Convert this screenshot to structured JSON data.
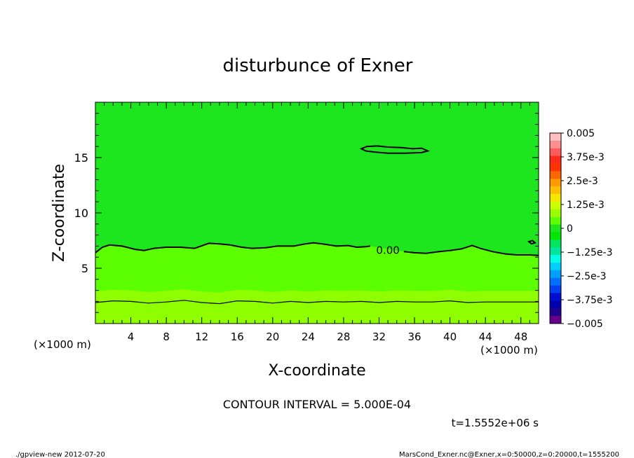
{
  "chart_data": {
    "type": "contour",
    "title": "disturbunce of Exner",
    "xlabel": "X-coordinate",
    "ylabel": "Z-coordinate",
    "x_unit_left": "(×1000 m)",
    "x_unit_right": "(×1000 m)",
    "xlim": [
      0,
      50
    ],
    "ylim": [
      0,
      20
    ],
    "x_ticks": [
      4,
      8,
      12,
      16,
      20,
      24,
      28,
      32,
      36,
      40,
      44,
      48
    ],
    "y_ticks": [
      5,
      10,
      15
    ],
    "contour_label": "0.00",
    "contour_interval_text": "CONTOUR INTERVAL = 5.000E-04",
    "time_text": "t=1.5552e+06 s",
    "colorbar": {
      "labels": [
        "0.005",
        "3.75e-3",
        "2.5e-3",
        "1.25e-3",
        "0",
        "−1.25e-3",
        "−2.5e-3",
        "−3.75e-3",
        "−0.005"
      ],
      "values": [
        0.005,
        0.00375,
        0.0025,
        0.00125,
        0,
        -0.00125,
        -0.0025,
        -0.00375,
        -0.005
      ],
      "colors": [
        "#ffc0c0",
        "#ff8f8f",
        "#ff5a5a",
        "#ff2a1a",
        "#ff3300",
        "#ff6600",
        "#ff9900",
        "#ffbf00",
        "#f5e600",
        "#ccff00",
        "#99ff00",
        "#5cff00",
        "#1ee61e",
        "#00e600",
        "#00e660",
        "#00e6a0",
        "#00ffe6",
        "#00cfff",
        "#00a0ff",
        "#0070ff",
        "#0040f0",
        "#0010d0",
        "#0000b0",
        "#200090",
        "#6a0090"
      ]
    },
    "fill_colors": {
      "upper": "#1ee61e",
      "lower": "#5cff00",
      "bottom_band": "#8fff00"
    },
    "contours": [
      {
        "level": 0.0,
        "points": [
          [
            0,
            6.4
          ],
          [
            0.8,
            6.9
          ],
          [
            1.6,
            7.1
          ],
          [
            3,
            7.0
          ],
          [
            4.5,
            6.7
          ],
          [
            5.5,
            6.6
          ],
          [
            6.6,
            6.8
          ],
          [
            8,
            6.9
          ],
          [
            9.6,
            6.9
          ],
          [
            11.2,
            6.8
          ],
          [
            12.8,
            7.25
          ],
          [
            14,
            7.2
          ],
          [
            15.2,
            7.1
          ],
          [
            16.5,
            6.9
          ],
          [
            17.7,
            6.8
          ],
          [
            19.2,
            6.85
          ],
          [
            20.5,
            7.0
          ],
          [
            22.4,
            7.0
          ],
          [
            23.7,
            7.2
          ],
          [
            24.6,
            7.3
          ],
          [
            25.6,
            7.2
          ],
          [
            27.2,
            7.0
          ],
          [
            28.5,
            7.05
          ],
          [
            29.5,
            6.9
          ],
          [
            30.5,
            6.95
          ],
          [
            31,
            7.0
          ]
        ],
        "label_at": [
          33,
          6.6
        ]
      },
      {
        "level": 0.0,
        "points": [
          [
            34.8,
            6.5
          ],
          [
            36,
            6.4
          ],
          [
            37.3,
            6.35
          ],
          [
            38.8,
            6.5
          ],
          [
            40,
            6.6
          ],
          [
            41.3,
            6.75
          ],
          [
            42.5,
            7.05
          ],
          [
            43.4,
            6.8
          ],
          [
            44.8,
            6.5
          ],
          [
            46.2,
            6.3
          ],
          [
            47.5,
            6.2
          ],
          [
            49,
            6.2
          ],
          [
            50,
            6.15
          ]
        ]
      },
      {
        "level": 0.0,
        "closed": true,
        "points": [
          [
            30,
            15.8
          ],
          [
            30.6,
            16.0
          ],
          [
            31.8,
            16.05
          ],
          [
            33,
            15.95
          ],
          [
            34.5,
            15.9
          ],
          [
            35.8,
            15.8
          ],
          [
            36.8,
            15.85
          ],
          [
            37.5,
            15.6
          ],
          [
            36.8,
            15.45
          ],
          [
            35,
            15.4
          ],
          [
            33,
            15.4
          ],
          [
            31.5,
            15.5
          ],
          [
            30.5,
            15.6
          ]
        ]
      },
      {
        "level": 0.0,
        "closed": true,
        "points": [
          [
            48.9,
            7.4
          ],
          [
            49.3,
            7.5
          ],
          [
            49.6,
            7.3
          ],
          [
            49.2,
            7.2
          ]
        ]
      },
      {
        "level": -0.0005,
        "points": [
          [
            0,
            1.9
          ],
          [
            2,
            2.05
          ],
          [
            4,
            2.0
          ],
          [
            6,
            1.85
          ],
          [
            8,
            1.95
          ],
          [
            10,
            2.1
          ],
          [
            12,
            1.9
          ],
          [
            14,
            1.8
          ],
          [
            16,
            2.05
          ],
          [
            18,
            2.0
          ],
          [
            20,
            1.85
          ],
          [
            22,
            2.0
          ],
          [
            24,
            1.9
          ],
          [
            26,
            2.0
          ],
          [
            28,
            1.95
          ],
          [
            30,
            2.0
          ],
          [
            32,
            1.9
          ],
          [
            34,
            2.0
          ],
          [
            36,
            1.95
          ],
          [
            38,
            1.95
          ],
          [
            40,
            2.05
          ],
          [
            42,
            1.9
          ],
          [
            44,
            1.95
          ],
          [
            46,
            1.95
          ],
          [
            48,
            1.95
          ],
          [
            50,
            1.95
          ]
        ]
      }
    ]
  },
  "footer": {
    "left": "./gpview-new   2012-07-20",
    "right": "MarsCond_Exner.nc@Exner,x=0:50000,z=0:20000,t=1555200"
  }
}
